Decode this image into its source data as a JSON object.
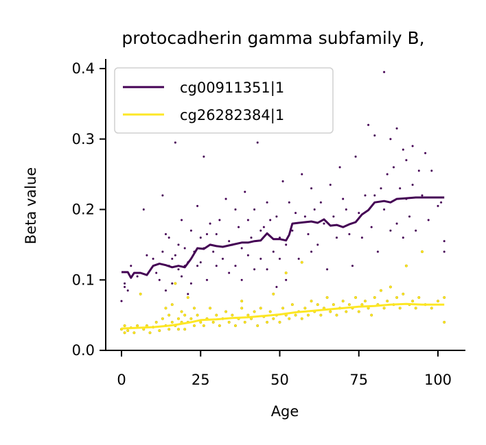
{
  "chart_data": {
    "type": "scatter",
    "title": "protocadherin gamma subfamily B,",
    "xlabel": "Age",
    "ylabel": "Beta value",
    "xlim": [
      -5,
      108
    ],
    "ylim": [
      0.0,
      0.415
    ],
    "xticks": [
      0,
      25,
      50,
      75,
      100
    ],
    "yticks": [
      0.0,
      0.1,
      0.2,
      0.3,
      0.4
    ],
    "xtick_labels": [
      "0",
      "25",
      "50",
      "75",
      "100"
    ],
    "ytick_labels": [
      "0.0",
      "0.1",
      "0.2",
      "0.3",
      "0.4"
    ],
    "grid": false,
    "legend": "upper-left",
    "series": [
      {
        "name": "cg00911351|1",
        "color": "#440154",
        "trend": [
          [
            0,
            0.111
          ],
          [
            2,
            0.111
          ],
          [
            3,
            0.103
          ],
          [
            4,
            0.11
          ],
          [
            6,
            0.11
          ],
          [
            8,
            0.107
          ],
          [
            10,
            0.12
          ],
          [
            12,
            0.123
          ],
          [
            14,
            0.121
          ],
          [
            16,
            0.118
          ],
          [
            18,
            0.12
          ],
          [
            20,
            0.118
          ],
          [
            22,
            0.13
          ],
          [
            24,
            0.145
          ],
          [
            26,
            0.144
          ],
          [
            28,
            0.15
          ],
          [
            30,
            0.148
          ],
          [
            32,
            0.147
          ],
          [
            35,
            0.15
          ],
          [
            38,
            0.153
          ],
          [
            40,
            0.153
          ],
          [
            42,
            0.155
          ],
          [
            44,
            0.156
          ],
          [
            46,
            0.166
          ],
          [
            48,
            0.158
          ],
          [
            50,
            0.158
          ],
          [
            52,
            0.156
          ],
          [
            53,
            0.164
          ],
          [
            54,
            0.18
          ],
          [
            56,
            0.181
          ],
          [
            58,
            0.182
          ],
          [
            60,
            0.183
          ],
          [
            62,
            0.181
          ],
          [
            64,
            0.186
          ],
          [
            66,
            0.177
          ],
          [
            68,
            0.178
          ],
          [
            70,
            0.175
          ],
          [
            72,
            0.179
          ],
          [
            74,
            0.182
          ],
          [
            76,
            0.193
          ],
          [
            78,
            0.199
          ],
          [
            80,
            0.21
          ],
          [
            83,
            0.212
          ],
          [
            85,
            0.21
          ],
          [
            87,
            0.215
          ],
          [
            90,
            0.216
          ],
          [
            93,
            0.217
          ],
          [
            97,
            0.217
          ],
          [
            102,
            0.217
          ]
        ],
        "points": [
          [
            0,
            0.07
          ],
          [
            1,
            0.095
          ],
          [
            1,
            0.09
          ],
          [
            2,
            0.085
          ],
          [
            3,
            0.12
          ],
          [
            5,
            0.105
          ],
          [
            7,
            0.2
          ],
          [
            8,
            0.135
          ],
          [
            10,
            0.13
          ],
          [
            11,
            0.11
          ],
          [
            12,
            0.1
          ],
          [
            13,
            0.14
          ],
          [
            13,
            0.22
          ],
          [
            14,
            0.165
          ],
          [
            14,
            0.085
          ],
          [
            15,
            0.16
          ],
          [
            15,
            0.12
          ],
          [
            16,
            0.13
          ],
          [
            16,
            0.095
          ],
          [
            17,
            0.295
          ],
          [
            17,
            0.135
          ],
          [
            18,
            0.15
          ],
          [
            18,
            0.115
          ],
          [
            19,
            0.105
          ],
          [
            19,
            0.185
          ],
          [
            20,
            0.12
          ],
          [
            20,
            0.145
          ],
          [
            21,
            0.125
          ],
          [
            21,
            0.08
          ],
          [
            22,
            0.17
          ],
          [
            22,
            0.095
          ],
          [
            23,
            0.14
          ],
          [
            24,
            0.205
          ],
          [
            24,
            0.12
          ],
          [
            25,
            0.16
          ],
          [
            25,
            0.125
          ],
          [
            26,
            0.275
          ],
          [
            26,
            0.145
          ],
          [
            27,
            0.165
          ],
          [
            27,
            0.1
          ],
          [
            28,
            0.18
          ],
          [
            29,
            0.14
          ],
          [
            30,
            0.165
          ],
          [
            30,
            0.12
          ],
          [
            31,
            0.185
          ],
          [
            32,
            0.13
          ],
          [
            33,
            0.215
          ],
          [
            34,
            0.155
          ],
          [
            34,
            0.11
          ],
          [
            35,
            0.15
          ],
          [
            36,
            0.2
          ],
          [
            36,
            0.12
          ],
          [
            37,
            0.175
          ],
          [
            38,
            0.145
          ],
          [
            38,
            0.1
          ],
          [
            39,
            0.225
          ],
          [
            40,
            0.135
          ],
          [
            40,
            0.185
          ],
          [
            41,
            0.16
          ],
          [
            42,
            0.115
          ],
          [
            42,
            0.2
          ],
          [
            43,
            0.295
          ],
          [
            44,
            0.17
          ],
          [
            44,
            0.13
          ],
          [
            45,
            0.175
          ],
          [
            46,
            0.21
          ],
          [
            46,
            0.115
          ],
          [
            47,
            0.185
          ],
          [
            48,
            0.14
          ],
          [
            49,
            0.19
          ],
          [
            49,
            0.09
          ],
          [
            50,
            0.16
          ],
          [
            50,
            0.13
          ],
          [
            51,
            0.24
          ],
          [
            52,
            0.1
          ],
          [
            52,
            0.15
          ],
          [
            53,
            0.21
          ],
          [
            54,
            0.17
          ],
          [
            55,
            0.195
          ],
          [
            56,
            0.13
          ],
          [
            57,
            0.25
          ],
          [
            58,
            0.19
          ],
          [
            59,
            0.165
          ],
          [
            60,
            0.23
          ],
          [
            60,
            0.14
          ],
          [
            61,
            0.2
          ],
          [
            62,
            0.15
          ],
          [
            63,
            0.21
          ],
          [
            64,
            0.18
          ],
          [
            65,
            0.115
          ],
          [
            66,
            0.235
          ],
          [
            67,
            0.19
          ],
          [
            68,
            0.16
          ],
          [
            69,
            0.26
          ],
          [
            70,
            0.215
          ],
          [
            71,
            0.2
          ],
          [
            72,
            0.165
          ],
          [
            73,
            0.12
          ],
          [
            74,
            0.275
          ],
          [
            75,
            0.195
          ],
          [
            76,
            0.16
          ],
          [
            77,
            0.22
          ],
          [
            78,
            0.32
          ],
          [
            79,
            0.175
          ],
          [
            80,
            0.305
          ],
          [
            80,
            0.22
          ],
          [
            81,
            0.14
          ],
          [
            82,
            0.23
          ],
          [
            83,
            0.395
          ],
          [
            83,
            0.2
          ],
          [
            84,
            0.25
          ],
          [
            85,
            0.3
          ],
          [
            85,
            0.17
          ],
          [
            86,
            0.26
          ],
          [
            87,
            0.315
          ],
          [
            87,
            0.18
          ],
          [
            88,
            0.23
          ],
          [
            89,
            0.285
          ],
          [
            89,
            0.16
          ],
          [
            90,
            0.27
          ],
          [
            90,
            0.215
          ],
          [
            91,
            0.19
          ],
          [
            92,
            0.29
          ],
          [
            92,
            0.235
          ],
          [
            93,
            0.17
          ],
          [
            94,
            0.255
          ],
          [
            95,
            0.22
          ],
          [
            96,
            0.28
          ],
          [
            97,
            0.185
          ],
          [
            98,
            0.255
          ],
          [
            100,
            0.205
          ],
          [
            101,
            0.21
          ],
          [
            102,
            0.155
          ],
          [
            102,
            0.14
          ]
        ]
      },
      {
        "name": "cg26282384|1",
        "color": "#fde725",
        "trend": [
          [
            0,
            0.031
          ],
          [
            5,
            0.032
          ],
          [
            10,
            0.033
          ],
          [
            15,
            0.035
          ],
          [
            18,
            0.037
          ],
          [
            22,
            0.04
          ],
          [
            25,
            0.043
          ],
          [
            30,
            0.044
          ],
          [
            35,
            0.046
          ],
          [
            40,
            0.047
          ],
          [
            45,
            0.049
          ],
          [
            50,
            0.051
          ],
          [
            55,
            0.054
          ],
          [
            60,
            0.056
          ],
          [
            65,
            0.058
          ],
          [
            70,
            0.06
          ],
          [
            75,
            0.062
          ],
          [
            80,
            0.063
          ],
          [
            85,
            0.065
          ],
          [
            90,
            0.066
          ],
          [
            95,
            0.065
          ],
          [
            102,
            0.065
          ]
        ],
        "points": [
          [
            0,
            0.03
          ],
          [
            1,
            0.025
          ],
          [
            1,
            0.035
          ],
          [
            2,
            0.028
          ],
          [
            3,
            0.032
          ],
          [
            4,
            0.025
          ],
          [
            5,
            0.035
          ],
          [
            6,
            0.08
          ],
          [
            7,
            0.03
          ],
          [
            8,
            0.035
          ],
          [
            9,
            0.025
          ],
          [
            10,
            0.033
          ],
          [
            11,
            0.04
          ],
          [
            12,
            0.028
          ],
          [
            13,
            0.045
          ],
          [
            14,
            0.035
          ],
          [
            14,
            0.06
          ],
          [
            15,
            0.03
          ],
          [
            15,
            0.05
          ],
          [
            16,
            0.04
          ],
          [
            16,
            0.065
          ],
          [
            17,
            0.035
          ],
          [
            17,
            0.095
          ],
          [
            18,
            0.045
          ],
          [
            18,
            0.03
          ],
          [
            19,
            0.055
          ],
          [
            19,
            0.04
          ],
          [
            20,
            0.03
          ],
          [
            20,
            0.05
          ],
          [
            21,
            0.04
          ],
          [
            21,
            0.075
          ],
          [
            22,
            0.045
          ],
          [
            23,
            0.035
          ],
          [
            23,
            0.06
          ],
          [
            24,
            0.05
          ],
          [
            25,
            0.04
          ],
          [
            26,
            0.035
          ],
          [
            27,
            0.045
          ],
          [
            28,
            0.06
          ],
          [
            29,
            0.04
          ],
          [
            30,
            0.05
          ],
          [
            31,
            0.035
          ],
          [
            32,
            0.045
          ],
          [
            33,
            0.055
          ],
          [
            34,
            0.04
          ],
          [
            35,
            0.05
          ],
          [
            36,
            0.035
          ],
          [
            37,
            0.045
          ],
          [
            38,
            0.06
          ],
          [
            38,
            0.07
          ],
          [
            39,
            0.04
          ],
          [
            40,
            0.05
          ],
          [
            41,
            0.045
          ],
          [
            42,
            0.055
          ],
          [
            43,
            0.035
          ],
          [
            44,
            0.06
          ],
          [
            45,
            0.048
          ],
          [
            46,
            0.04
          ],
          [
            47,
            0.055
          ],
          [
            48,
            0.045
          ],
          [
            48,
            0.08
          ],
          [
            49,
            0.05
          ],
          [
            50,
            0.04
          ],
          [
            51,
            0.06
          ],
          [
            52,
            0.05
          ],
          [
            52,
            0.11
          ],
          [
            53,
            0.045
          ],
          [
            54,
            0.065
          ],
          [
            55,
            0.05
          ],
          [
            56,
            0.055
          ],
          [
            57,
            0.045
          ],
          [
            57,
            0.125
          ],
          [
            58,
            0.06
          ],
          [
            59,
            0.05
          ],
          [
            60,
            0.07
          ],
          [
            61,
            0.055
          ],
          [
            62,
            0.065
          ],
          [
            63,
            0.05
          ],
          [
            64,
            0.06
          ],
          [
            65,
            0.075
          ],
          [
            66,
            0.055
          ],
          [
            67,
            0.065
          ],
          [
            68,
            0.05
          ],
          [
            69,
            0.06
          ],
          [
            70,
            0.07
          ],
          [
            71,
            0.055
          ],
          [
            72,
            0.065
          ],
          [
            73,
            0.06
          ],
          [
            74,
            0.075
          ],
          [
            75,
            0.055
          ],
          [
            76,
            0.065
          ],
          [
            77,
            0.07
          ],
          [
            78,
            0.06
          ],
          [
            79,
            0.05
          ],
          [
            80,
            0.075
          ],
          [
            81,
            0.065
          ],
          [
            82,
            0.085
          ],
          [
            83,
            0.06
          ],
          [
            84,
            0.07
          ],
          [
            85,
            0.09
          ],
          [
            86,
            0.065
          ],
          [
            87,
            0.075
          ],
          [
            88,
            0.06
          ],
          [
            89,
            0.08
          ],
          [
            90,
            0.12
          ],
          [
            91,
            0.065
          ],
          [
            92,
            0.07
          ],
          [
            93,
            0.06
          ],
          [
            94,
            0.075
          ],
          [
            95,
            0.14
          ],
          [
            96,
            0.065
          ],
          [
            98,
            0.06
          ],
          [
            100,
            0.07
          ],
          [
            102,
            0.04
          ],
          [
            102,
            0.075
          ]
        ]
      }
    ]
  }
}
